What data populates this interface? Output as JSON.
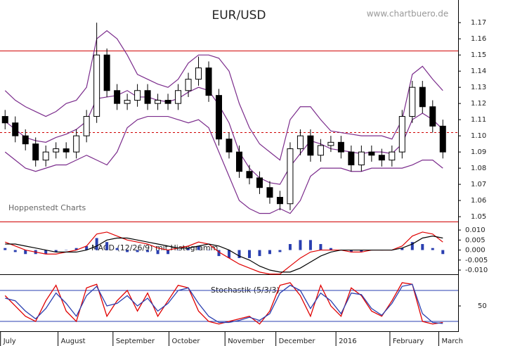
{
  "chart_data": {
    "type": "candlestick",
    "title": "EUR/USD",
    "source": "www.chartbuero.de",
    "credit": "Hoppenstedt Charts",
    "x": [
      0,
      1,
      2,
      3,
      4,
      5,
      6,
      7,
      8,
      9,
      10,
      11,
      12,
      13,
      14,
      15,
      16,
      17,
      18,
      19,
      20,
      21,
      22,
      23,
      24,
      25,
      26,
      27,
      28,
      29,
      30,
      31,
      32,
      33,
      34,
      35,
      36,
      37,
      38,
      39,
      40,
      41,
      42,
      43
    ],
    "xlim": [
      -0.5,
      44.5
    ],
    "xticks": [
      {
        "value": -0.45,
        "label": "July"
      },
      {
        "value": 5.2,
        "label": "August"
      },
      {
        "value": 10.6,
        "label": "September"
      },
      {
        "value": 16.1,
        "label": "October"
      },
      {
        "value": 21.6,
        "label": "November"
      },
      {
        "value": 26.6,
        "label": "December"
      },
      {
        "value": 32.5,
        "label": "2016"
      },
      {
        "value": 37.8,
        "label": "February"
      },
      {
        "value": 42.6,
        "label": "March"
      }
    ],
    "open": [
      1.112,
      1.108,
      1.1,
      1.095,
      1.085,
      1.09,
      1.092,
      1.09,
      1.1,
      1.112,
      1.15,
      1.128,
      1.12,
      1.122,
      1.128,
      1.12,
      1.122,
      1.12,
      1.128,
      1.135,
      1.142,
      1.125,
      1.098,
      1.09,
      1.078,
      1.074,
      1.068,
      1.062,
      1.058,
      1.092,
      1.1,
      1.088,
      1.094,
      1.096,
      1.09,
      1.082,
      1.09,
      1.088,
      1.085,
      1.09,
      1.112,
      1.13,
      1.118,
      1.106
    ],
    "high": [
      1.116,
      1.112,
      1.104,
      1.099,
      1.094,
      1.096,
      1.096,
      1.104,
      1.116,
      1.17,
      1.154,
      1.132,
      1.126,
      1.132,
      1.132,
      1.126,
      1.126,
      1.132,
      1.139,
      1.149,
      1.146,
      1.129,
      1.102,
      1.094,
      1.082,
      1.078,
      1.072,
      1.066,
      1.096,
      1.104,
      1.104,
      1.098,
      1.1,
      1.1,
      1.094,
      1.094,
      1.094,
      1.092,
      1.094,
      1.116,
      1.134,
      1.134,
      1.122,
      1.11
    ],
    "low": [
      1.104,
      1.096,
      1.091,
      1.081,
      1.081,
      1.086,
      1.086,
      1.086,
      1.096,
      1.108,
      1.124,
      1.116,
      1.116,
      1.118,
      1.116,
      1.116,
      1.116,
      1.116,
      1.124,
      1.131,
      1.121,
      1.094,
      1.086,
      1.074,
      1.07,
      1.064,
      1.058,
      1.054,
      1.054,
      1.088,
      1.084,
      1.084,
      1.09,
      1.086,
      1.078,
      1.078,
      1.084,
      1.081,
      1.081,
      1.086,
      1.108,
      1.114,
      1.102,
      1.086
    ],
    "close": [
      1.108,
      1.1,
      1.095,
      1.085,
      1.09,
      1.092,
      1.09,
      1.1,
      1.112,
      1.15,
      1.128,
      1.12,
      1.122,
      1.128,
      1.12,
      1.122,
      1.12,
      1.128,
      1.135,
      1.142,
      1.125,
      1.098,
      1.09,
      1.078,
      1.074,
      1.068,
      1.062,
      1.058,
      1.092,
      1.1,
      1.088,
      1.094,
      1.096,
      1.09,
      1.082,
      1.09,
      1.088,
      1.085,
      1.09,
      1.112,
      1.13,
      1.118,
      1.106,
      1.09
    ],
    "candle_color": "#000000",
    "bands": [
      {
        "color": "#7b2c8c",
        "values": [
          1.128,
          1.122,
          1.118,
          1.115,
          1.112,
          1.115,
          1.12,
          1.122,
          1.13,
          1.16,
          1.165,
          1.16,
          1.15,
          1.138,
          1.135,
          1.132,
          1.13,
          1.135,
          1.145,
          1.15,
          1.15,
          1.148,
          1.14,
          1.12,
          1.105,
          1.095,
          1.09,
          1.085,
          1.11,
          1.118,
          1.118,
          1.11,
          1.103,
          1.102,
          1.101,
          1.1,
          1.1,
          1.1,
          1.098,
          1.11,
          1.138,
          1.143,
          1.135,
          1.128
        ]
      },
      {
        "color": "#7b2c8c",
        "values": [
          1.109,
          1.104,
          1.099,
          1.097,
          1.096,
          1.099,
          1.101,
          1.104,
          1.109,
          1.123,
          1.124,
          1.125,
          1.128,
          1.124,
          1.124,
          1.122,
          1.121,
          1.123,
          1.127,
          1.13,
          1.128,
          1.119,
          1.108,
          1.09,
          1.08,
          1.074,
          1.071,
          1.07,
          1.081,
          1.089,
          1.097,
          1.095,
          1.092,
          1.091,
          1.09,
          1.089,
          1.09,
          1.09,
          1.089,
          1.095,
          1.11,
          1.114,
          1.11,
          1.104
        ]
      },
      {
        "color": "#7b2c8c",
        "values": [
          1.09,
          1.085,
          1.08,
          1.078,
          1.08,
          1.082,
          1.082,
          1.085,
          1.088,
          1.085,
          1.082,
          1.09,
          1.105,
          1.11,
          1.112,
          1.112,
          1.112,
          1.11,
          1.108,
          1.11,
          1.105,
          1.09,
          1.075,
          1.06,
          1.055,
          1.052,
          1.052,
          1.055,
          1.052,
          1.06,
          1.075,
          1.08,
          1.08,
          1.08,
          1.078,
          1.078,
          1.08,
          1.08,
          1.08,
          1.08,
          1.082,
          1.085,
          1.085,
          1.08
        ]
      }
    ],
    "levels": [
      {
        "value": 1.1525,
        "color": "#d00000",
        "style": "solid"
      },
      {
        "value": 1.102,
        "color": "#d00000",
        "style": "dashed"
      }
    ],
    "ylim": [
      1.047,
      1.184
    ],
    "yticks": [
      1.05,
      1.06,
      1.07,
      1.08,
      1.09,
      {
        "value": 1.1,
        "label": "1.10"
      },
      1.11,
      1.12,
      1.13,
      1.14,
      1.15,
      1.16,
      1.17
    ],
    "macd_panel": {
      "label": "MACD (12/26/9) mit Histogramm",
      "ylim": [
        -0.0121,
        0.0139
      ],
      "yticks": [
        {
          "value": 0.01,
          "label": "0.010"
        },
        {
          "value": 0.005,
          "label": "0.005"
        },
        {
          "value": 0,
          "label": "0.000"
        },
        {
          "value": -0.005,
          "label": "-0.005"
        },
        {
          "value": -0.01,
          "label": "-0.010"
        }
      ],
      "macd": {
        "color": "#e00000",
        "values": [
          0.004,
          0.002,
          0.0,
          -0.001,
          -0.002,
          -0.002,
          -0.001,
          0.0,
          0.002,
          0.008,
          0.009,
          0.007,
          0.005,
          0.004,
          0.003,
          0.001,
          0.0,
          0.001,
          0.002,
          0.004,
          0.003,
          -0.001,
          -0.004,
          -0.007,
          -0.009,
          -0.011,
          -0.012,
          -0.012,
          -0.008,
          -0.004,
          -0.001,
          0.0,
          0.0,
          0.0,
          -0.001,
          -0.001,
          0.0,
          0.0,
          0.0,
          0.002,
          0.007,
          0.009,
          0.008,
          0.004
        ]
      },
      "signal": {
        "color": "#000000",
        "values": [
          0.003,
          0.003,
          0.002,
          0.001,
          0.0,
          -0.001,
          -0.001,
          -0.001,
          0.0,
          0.002,
          0.005,
          0.006,
          0.006,
          0.005,
          0.004,
          0.003,
          0.002,
          0.001,
          0.001,
          0.002,
          0.003,
          0.002,
          0.0,
          -0.003,
          -0.005,
          -0.008,
          -0.01,
          -0.011,
          -0.011,
          -0.009,
          -0.006,
          -0.003,
          -0.001,
          0.0,
          0.0,
          0.0,
          0.0,
          0.0,
          0.0,
          0.001,
          0.003,
          0.006,
          0.007,
          0.006
        ]
      },
      "histogram": {
        "color": "#2a3fb0",
        "values": [
          0.001,
          -0.001,
          -0.002,
          -0.002,
          -0.002,
          -0.001,
          0,
          0.001,
          0.002,
          0.006,
          0.004,
          0.001,
          -0.001,
          -0.001,
          -0.001,
          -0.002,
          -0.002,
          0,
          0.001,
          0.002,
          0,
          -0.003,
          -0.004,
          -0.004,
          -0.004,
          -0.003,
          -0.002,
          -0.001,
          0.003,
          0.005,
          0.005,
          0.003,
          0.001,
          0,
          -0.001,
          -0.001,
          0,
          0,
          0,
          0.001,
          0.004,
          0.003,
          0.001,
          -0.002
        ]
      }
    },
    "stochastic_panel": {
      "label": "Stochastik (5/3/3)",
      "ylim": [
        1,
        110
      ],
      "yticks": [
        50
      ],
      "levels": [
        80,
        20
      ],
      "level_color": "#2a3fb0",
      "k": {
        "color": "#e00000",
        "values": [
          70,
          50,
          30,
          20,
          60,
          90,
          40,
          20,
          85,
          92,
          30,
          60,
          80,
          40,
          75,
          30,
          60,
          90,
          85,
          40,
          20,
          15,
          20,
          25,
          30,
          15,
          40,
          90,
          95,
          70,
          30,
          90,
          50,
          30,
          85,
          70,
          40,
          30,
          60,
          95,
          92,
          20,
          15,
          18
        ]
      },
      "d": {
        "color": "#2a3fb0",
        "values": [
          65,
          60,
          40,
          25,
          45,
          75,
          55,
          30,
          70,
          88,
          50,
          55,
          70,
          50,
          65,
          40,
          55,
          80,
          85,
          55,
          30,
          18,
          18,
          22,
          28,
          22,
          35,
          75,
          90,
          80,
          45,
          75,
          60,
          35,
          75,
          72,
          45,
          32,
          55,
          88,
          92,
          35,
          18,
          16
        ]
      }
    }
  }
}
